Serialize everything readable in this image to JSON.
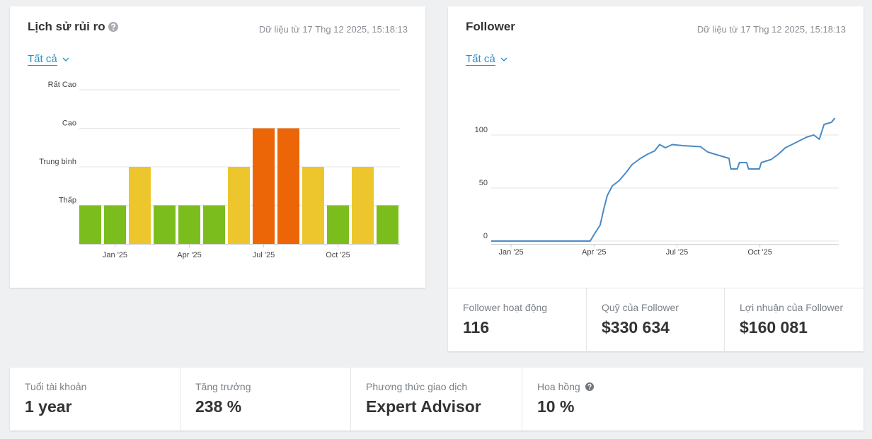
{
  "cards": [
    {
      "timestamp": "Dữ liệu từ 17 Thg 12 2025, 15:18:13",
      "filter": "Tất cả"
    },
    {
      "timestamp": "Dữ liệu từ 17 Thg 12 2025, 15:18:13",
      "filter": "Tất cả"
    }
  ],
  "chart_data": [
    {
      "type": "bar",
      "title": "Lịch sử rủi ro",
      "categories": [
        null,
        "Jan '25",
        null,
        null,
        "Apr '25",
        null,
        null,
        "Jul '25",
        null,
        null,
        "Oct '25",
        null,
        null
      ],
      "values": [
        1,
        1,
        2,
        1,
        1,
        1,
        2,
        3,
        3,
        2,
        1,
        2,
        1
      ],
      "colors": [
        "#7cbd1e",
        "#7cbd1e",
        "#ecc62c",
        "#7cbd1e",
        "#7cbd1e",
        "#7cbd1e",
        "#ecc62c",
        "#ec6608",
        "#ec6608",
        "#ecc62c",
        "#7cbd1e",
        "#ecc62c",
        "#7cbd1e"
      ],
      "ylim": [
        0,
        4
      ],
      "yticks": [
        {
          "value": 1,
          "label": "Thấp"
        },
        {
          "value": 2,
          "label": "Trung bình"
        },
        {
          "value": 3,
          "label": "Cao"
        },
        {
          "value": 4,
          "label": "Rất Cao"
        }
      ],
      "grid": true
    },
    {
      "type": "line",
      "title": "Follower",
      "x": [
        -0.72,
        2.86,
        3.02,
        3.22,
        3.35,
        3.48,
        3.66,
        3.91,
        4.17,
        4.37,
        4.68,
        4.94,
        5.19,
        5.37,
        5.58,
        5.83,
        6.21,
        6.85,
        7.11,
        7.62,
        7.88,
        7.95,
        8.18,
        8.26,
        8.52,
        8.59,
        8.98,
        9.05,
        9.41,
        9.67,
        9.92,
        10.31,
        10.69,
        10.95,
        11.15,
        11.32,
        11.59,
        11.71
      ],
      "values": [
        0,
        0,
        7,
        15,
        30,
        43,
        52,
        57,
        65,
        72,
        78,
        82,
        85,
        91,
        88,
        91,
        90,
        89,
        84,
        80,
        78,
        68,
        68,
        74,
        74,
        68,
        68,
        74,
        77,
        82,
        88,
        93,
        98,
        100,
        96,
        110,
        112,
        116
      ],
      "color": "#4a8ac4",
      "xlim": [
        -0.72,
        11.8
      ],
      "xticks": [
        {
          "value": 0,
          "label": "Jan '25"
        },
        {
          "value": 3,
          "label": "Apr '25"
        },
        {
          "value": 6,
          "label": "Jul '25"
        },
        {
          "value": 9,
          "label": "Oct '25"
        }
      ],
      "ylim": [
        0,
        140
      ],
      "yticks": [
        0,
        50,
        100
      ],
      "grid": true
    }
  ],
  "follower_stats": [
    {
      "label": "Follower hoạt động",
      "value": "116"
    },
    {
      "label": "Quỹ của Follower",
      "value": "$330 634"
    },
    {
      "label": "Lợi nhuận của Follower",
      "value": "$160 081"
    }
  ],
  "account_stats": [
    {
      "label": "Tuổi tài khoản",
      "value": "1 year"
    },
    {
      "label": "Tăng trưởng",
      "value": "238 %"
    },
    {
      "label": "Phương thức giao dịch",
      "value": "Expert Advisor"
    },
    {
      "label": "Hoa hồng",
      "value": "10 %"
    }
  ]
}
